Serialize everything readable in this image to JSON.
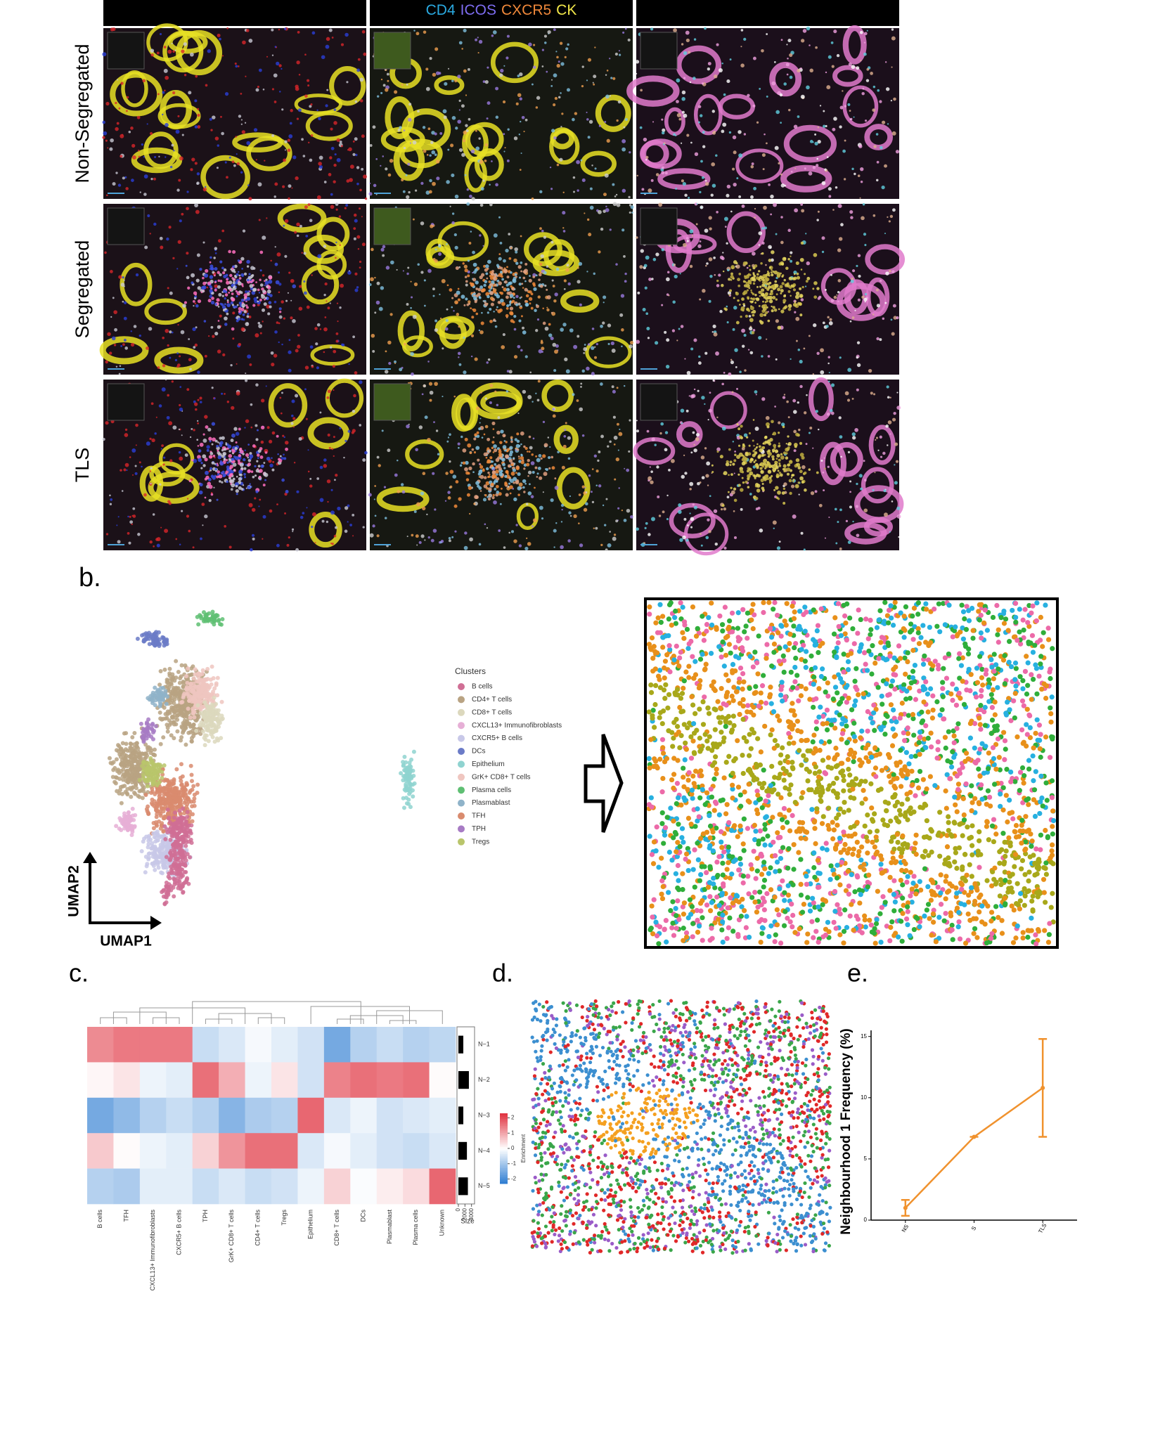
{
  "panel_a": {
    "markers": [
      {
        "text": "CD4",
        "color": "#2aa9e0"
      },
      {
        "text": "ICOS",
        "color": "#7d6cf0"
      },
      {
        "text": "CXCR5",
        "color": "#f0883a"
      },
      {
        "text": "CK",
        "color": "#f3e84a"
      }
    ],
    "rows": [
      "Non-Segregated",
      "Segregated",
      "TLS"
    ]
  },
  "panel_b": {
    "label": "b.",
    "x_label": "UMAP1",
    "y_label": "UMAP2",
    "legend_title": "Clusters",
    "clusters": [
      {
        "name": "B cells",
        "color": "#d06f95"
      },
      {
        "name": "CD4+ T cells",
        "color": "#b9a383"
      },
      {
        "name": "CD8+ T cells",
        "color": "#dcd8bd"
      },
      {
        "name": "CXCL13+ Immunofibroblasts",
        "color": "#e6afd6"
      },
      {
        "name": "CXCR5+ B cells",
        "color": "#c8c8e8"
      },
      {
        "name": "DCs",
        "color": "#6b7bc7"
      },
      {
        "name": "Epithelium",
        "color": "#8fd3d0"
      },
      {
        "name": "GrK+ CD8+ T cells",
        "color": "#efc6c0"
      },
      {
        "name": "Plasma cells",
        "color": "#5fbf73"
      },
      {
        "name": "Plasmablast",
        "color": "#8fb3c9"
      },
      {
        "name": "TFH",
        "color": "#d98b6e"
      },
      {
        "name": "TPH",
        "color": "#a77bc4"
      },
      {
        "name": "Tregs",
        "color": "#b9c56b"
      }
    ]
  },
  "panel_c": {
    "label": "c.",
    "chart_data": {
      "type": "heatmap",
      "categories": [
        "B cells",
        "TFH",
        "CXCL13+ Immunofibroblasts",
        "CXCR5+ B cells",
        "TPH",
        "GrK+ CD8+ T cells",
        "CD4+ T cells",
        "Tregs",
        "Epithelium",
        "CD8+ T cells",
        "DCs",
        "Plasmablast",
        "Plasma cells",
        "Unknown"
      ],
      "rows": [
        "N−1",
        "N−2",
        "N−3",
        "N−4",
        "N−5"
      ],
      "values": [
        [
          1.3,
          1.5,
          1.5,
          1.5,
          -0.6,
          -0.4,
          -0.1,
          -0.3,
          -0.5,
          -1.5,
          -0.8,
          -0.6,
          -0.8,
          -0.7
        ],
        [
          0.1,
          0.3,
          -0.2,
          -0.3,
          1.6,
          0.9,
          -0.2,
          0.3,
          -0.5,
          1.4,
          1.6,
          1.5,
          1.6,
          0.05
        ],
        [
          -1.5,
          -1.2,
          -0.8,
          -0.6,
          -0.8,
          -1.3,
          -0.9,
          -0.8,
          1.7,
          -0.4,
          -0.2,
          -0.5,
          -0.4,
          -0.3
        ],
        [
          0.6,
          0.05,
          -0.2,
          -0.3,
          0.5,
          1.2,
          1.6,
          1.6,
          -0.4,
          -0.1,
          -0.3,
          -0.5,
          -0.6,
          -0.4
        ],
        [
          -0.8,
          -0.9,
          -0.3,
          -0.3,
          -0.6,
          -0.4,
          -0.6,
          -0.5,
          -0.2,
          0.5,
          -0.05,
          0.2,
          0.4,
          1.7
        ]
      ],
      "colorbar_title": "Enrichment",
      "clim": [
        -2.3,
        2.3
      ],
      "colorbar_ticks": [
        2,
        1,
        0,
        -1,
        -2
      ],
      "sizes": [
        1500,
        3200,
        1500,
        2600,
        2900
      ],
      "size_label": "Size",
      "size_lim": [
        0,
        4500
      ],
      "size_ticks": [
        0,
        2000,
        4000
      ]
    }
  },
  "panel_d": {
    "label": "d."
  },
  "panel_e": {
    "label": "e.",
    "chart_data": {
      "type": "line",
      "y_label": "Neighbourhood 1 Frequency (%)",
      "categories": [
        "NS",
        "S",
        "TLS"
      ],
      "values": [
        1.0,
        6.8,
        10.8
      ],
      "errors": [
        0.65,
        0,
        4.0
      ],
      "color": "#f0922e",
      "ylim": [
        0,
        15.5
      ],
      "yticks": [
        0,
        5,
        10,
        15
      ]
    }
  }
}
